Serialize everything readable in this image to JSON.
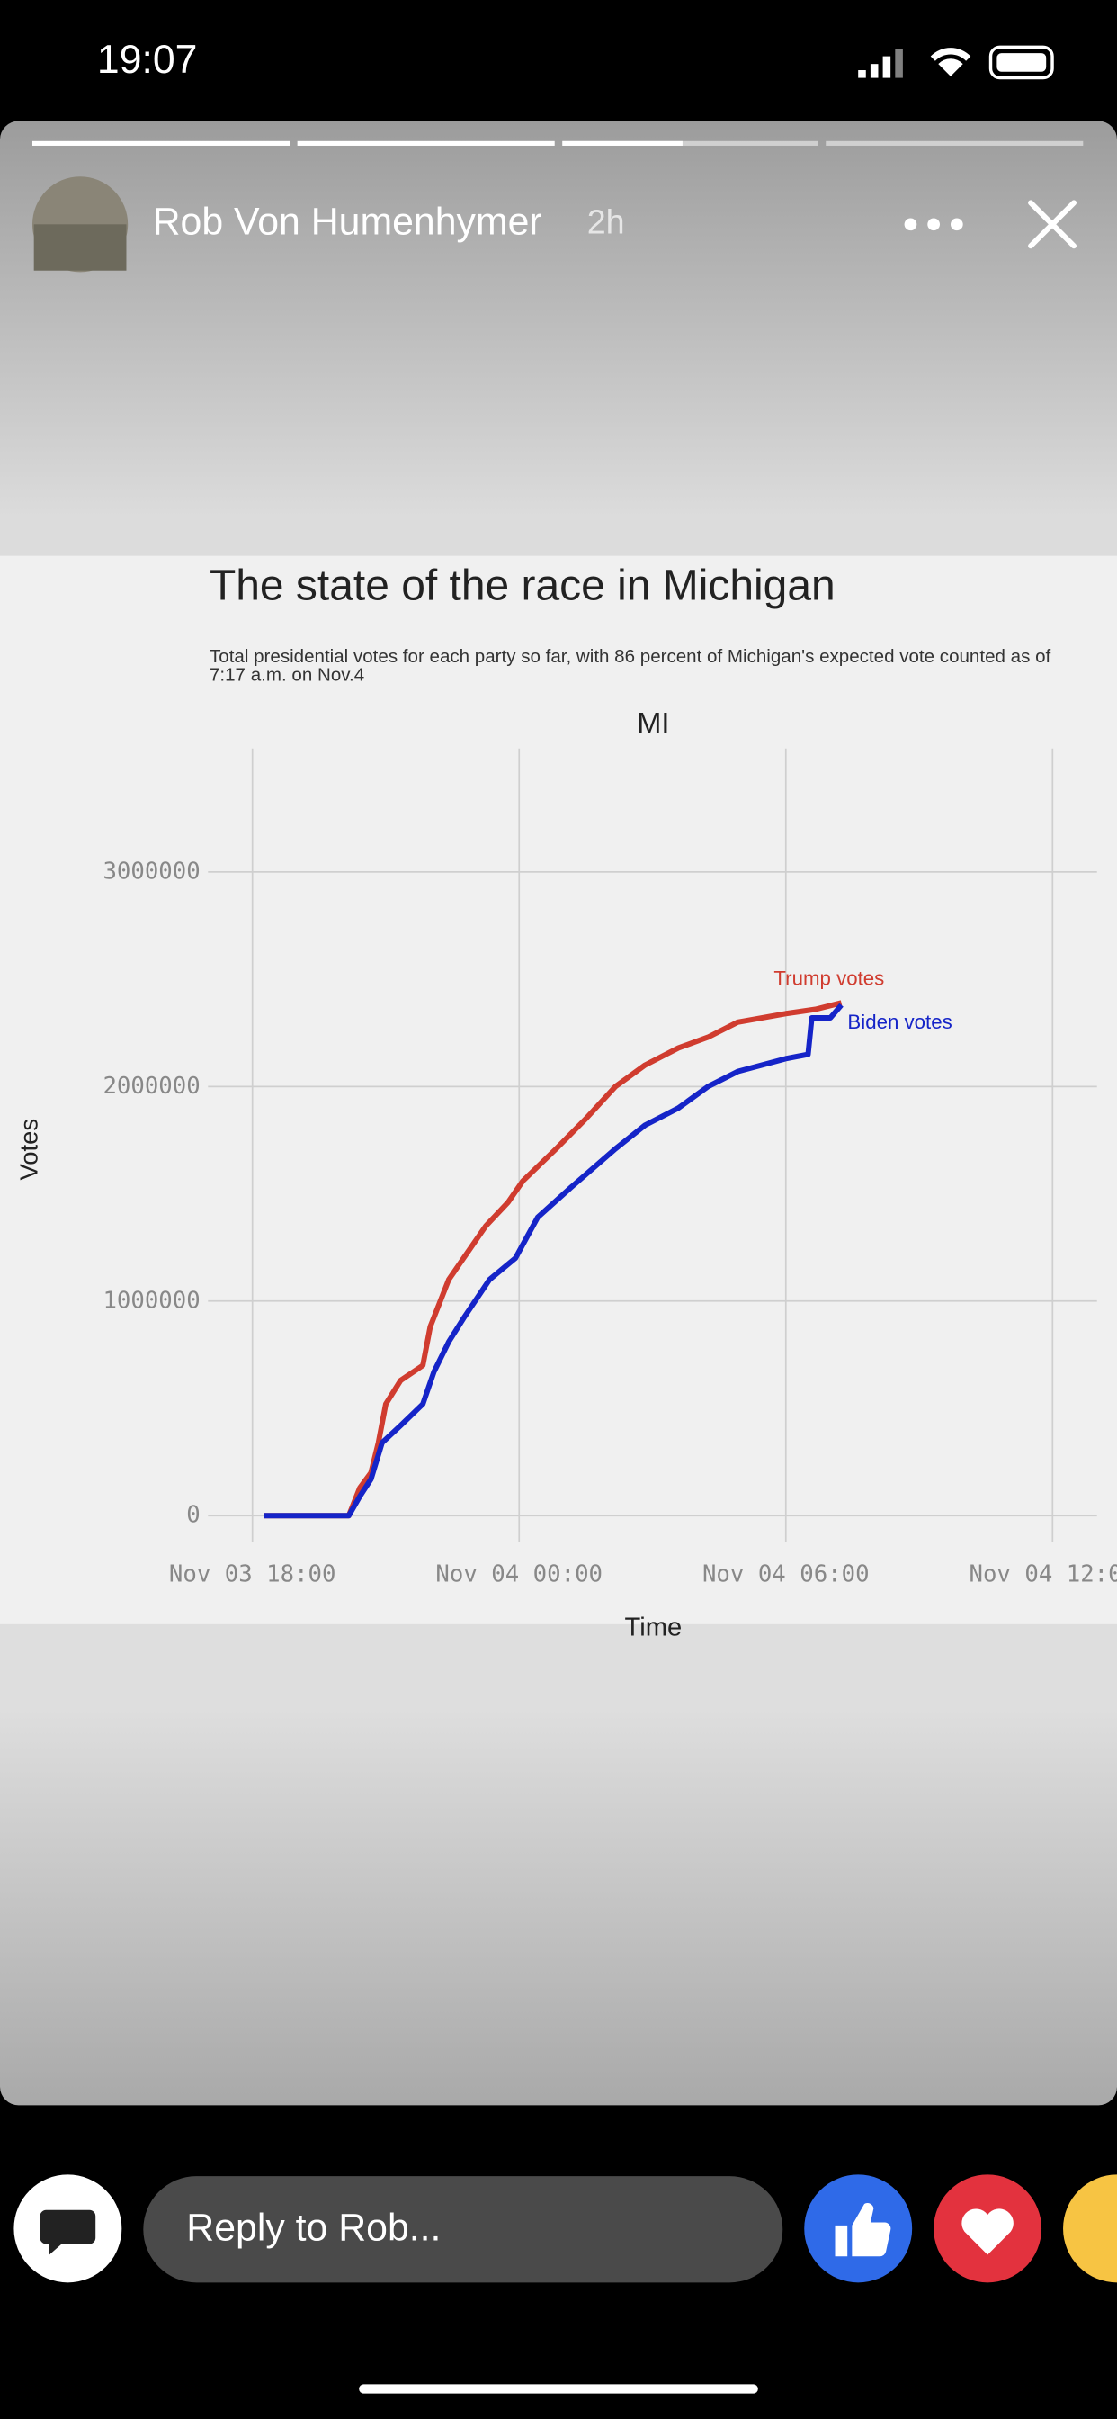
{
  "status_time": "19:07",
  "story": {
    "user": "Rob Von Humenhymer",
    "age": "2h"
  },
  "reply_placeholder": "Reply to Rob...",
  "chart_data": {
    "type": "line",
    "title": "The state of the race in Michigan",
    "subtitle": "Total presidential votes for each party so far, with 86 percent of Michigan's expected vote counted as of 7:17 a.m. on Nov.4",
    "panel_label": "MI",
    "xlabel": "Time",
    "ylabel": "Votes",
    "xlim": [
      "Nov 03 17:00",
      "Nov 04 13:00"
    ],
    "xticks": [
      "Nov 03 18:00",
      "Nov 04 00:00",
      "Nov 04 06:00",
      "Nov 04 12:00"
    ],
    "ylim": [
      -125000,
      3575000
    ],
    "yticks": [
      0,
      1000000,
      2000000,
      3000000
    ],
    "grid": true,
    "series": [
      {
        "name": "Trump votes",
        "color": "#d03c2f",
        "x": [
          "Nov 03 18:15",
          "Nov 03 20:10",
          "Nov 03 20:25",
          "Nov 03 20:40",
          "Nov 03 20:50",
          "Nov 03 21:00",
          "Nov 03 21:20",
          "Nov 03 21:50",
          "Nov 03 22:00",
          "Nov 03 22:25",
          "Nov 03 22:45",
          "Nov 03 23:15",
          "Nov 03 23:45",
          "Nov 04 00:05",
          "Nov 04 00:50",
          "Nov 04 01:30",
          "Nov 04 02:10",
          "Nov 04 02:50",
          "Nov 04 03:35",
          "Nov 04 04:15",
          "Nov 04 04:55",
          "Nov 04 06:00",
          "Nov 04 06:40",
          "Nov 04 07:15"
        ],
        "values": [
          0,
          0,
          130000,
          200000,
          340000,
          520000,
          630000,
          700000,
          880000,
          1100000,
          1200000,
          1350000,
          1460000,
          1560000,
          1710000,
          1850000,
          2000000,
          2100000,
          2180000,
          2230000,
          2300000,
          2340000,
          2360000,
          2390000
        ]
      },
      {
        "name": "Biden votes",
        "color": "#1524c8",
        "x": [
          "Nov 03 18:15",
          "Nov 03 20:10",
          "Nov 03 20:25",
          "Nov 03 20:40",
          "Nov 03 20:55",
          "Nov 03 21:20",
          "Nov 03 21:50",
          "Nov 03 22:05",
          "Nov 03 22:25",
          "Nov 03 22:45",
          "Nov 03 23:20",
          "Nov 03 23:55",
          "Nov 04 00:25",
          "Nov 04 01:10",
          "Nov 04 02:10",
          "Nov 04 02:50",
          "Nov 04 03:35",
          "Nov 04 04:15",
          "Nov 04 04:55",
          "Nov 04 06:00",
          "Nov 04 06:30",
          "Nov 04 06:35",
          "Nov 04 07:00",
          "Nov 04 07:15"
        ],
        "values": [
          0,
          0,
          90000,
          170000,
          340000,
          420000,
          520000,
          670000,
          810000,
          920000,
          1100000,
          1200000,
          1390000,
          1530000,
          1710000,
          1820000,
          1900000,
          2000000,
          2070000,
          2130000,
          2150000,
          2320000,
          2320000,
          2380000
        ]
      }
    ]
  }
}
